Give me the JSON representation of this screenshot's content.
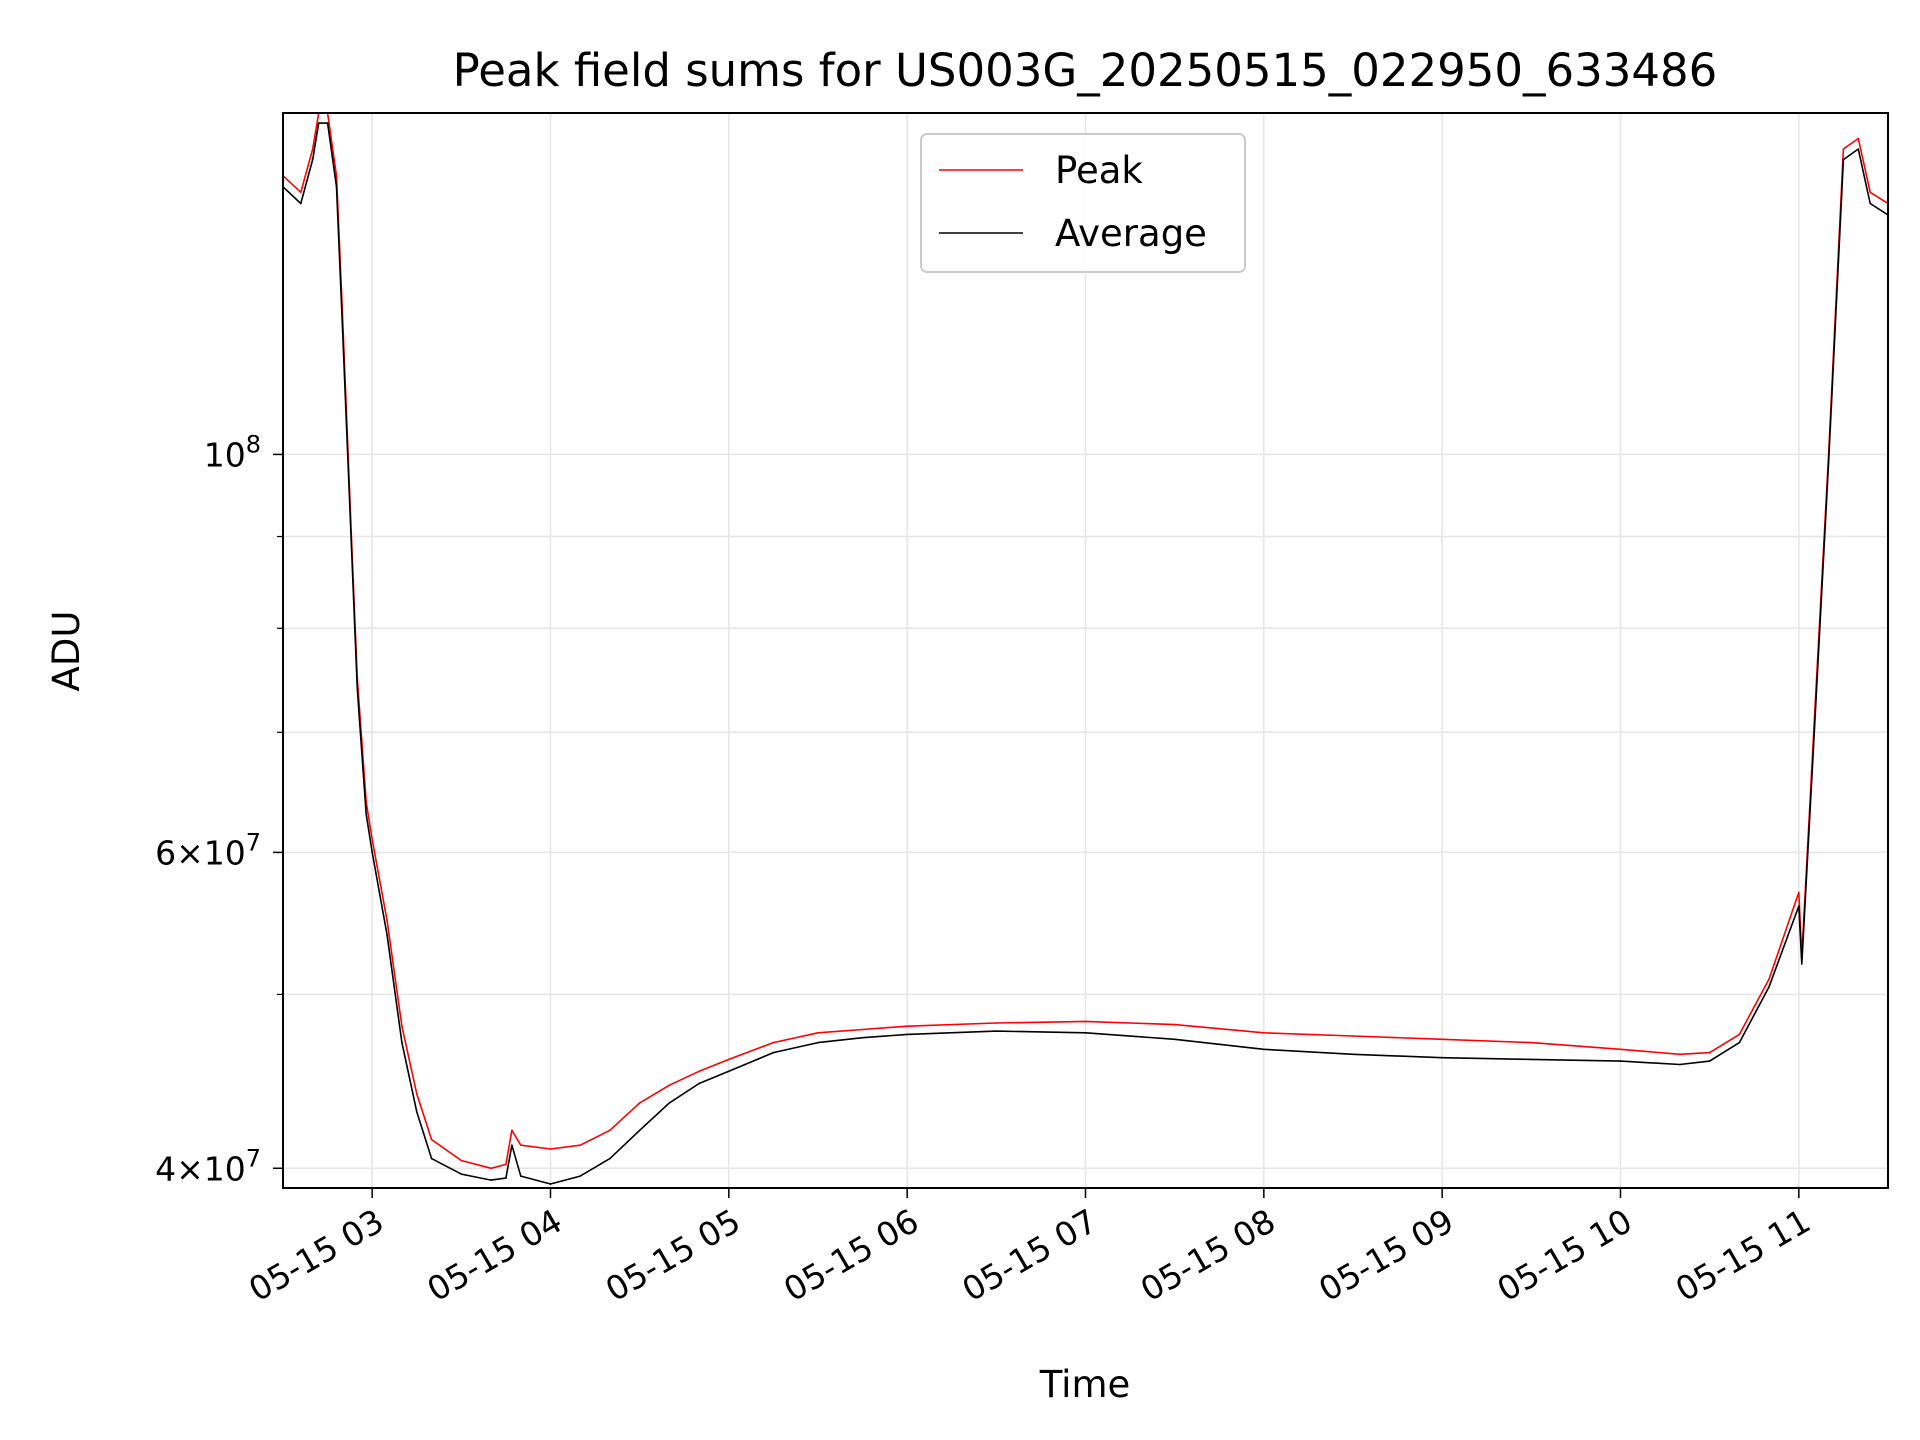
{
  "chart_data": {
    "type": "line",
    "title": "Peak field sums for US003G_20250515_022950_633486",
    "xlabel": "Time",
    "ylabel": "ADU",
    "x_axis": "datetime",
    "xlim": [
      "2025-05-15 02:30",
      "2025-05-15 11:30"
    ],
    "x_ticks": [
      "05-15 03",
      "05-15 04",
      "05-15 05",
      "05-15 06",
      "05-15 07",
      "05-15 08",
      "05-15 09",
      "05-15 10",
      "05-15 11"
    ],
    "y_scale": "log",
    "ylim": [
      39000000,
      155000000
    ],
    "y_major_ticks": [
      {
        "value": 100000000,
        "base": "10",
        "exp": "8",
        "mult": ""
      },
      {
        "value": 60000000,
        "base": "10",
        "exp": "7",
        "mult": "6×"
      },
      {
        "value": 40000000,
        "base": "10",
        "exp": "7",
        "mult": "4×"
      }
    ],
    "y_minor_ticks": [
      50000000,
      70000000,
      80000000,
      90000000
    ],
    "grid": true,
    "legend": {
      "placement": "upper center",
      "entries": [
        "Peak",
        "Average"
      ]
    },
    "colors": {
      "Peak": "#ff0000",
      "Average": "#000000",
      "grid": "#e6e6e6"
    },
    "series": [
      {
        "name": "Peak",
        "color": "#ff0000",
        "x": [
          "2025-05-15 02:30",
          "2025-05-15 02:36",
          "2025-05-15 02:40",
          "2025-05-15 02:42",
          "2025-05-15 02:45",
          "2025-05-15 02:48",
          "2025-05-15 02:50",
          "2025-05-15 02:53",
          "2025-05-15 02:55",
          "2025-05-15 02:58",
          "2025-05-15 03:00",
          "2025-05-15 03:05",
          "2025-05-15 03:10",
          "2025-05-15 03:15",
          "2025-05-15 03:20",
          "2025-05-15 03:30",
          "2025-05-15 03:40",
          "2025-05-15 03:45",
          "2025-05-15 03:47",
          "2025-05-15 03:50",
          "2025-05-15 04:00",
          "2025-05-15 04:10",
          "2025-05-15 04:20",
          "2025-05-15 04:30",
          "2025-05-15 04:40",
          "2025-05-15 04:50",
          "2025-05-15 05:00",
          "2025-05-15 05:15",
          "2025-05-15 05:30",
          "2025-05-15 05:45",
          "2025-05-15 06:00",
          "2025-05-15 06:30",
          "2025-05-15 07:00",
          "2025-05-15 07:30",
          "2025-05-15 08:00",
          "2025-05-15 08:30",
          "2025-05-15 09:00",
          "2025-05-15 09:30",
          "2025-05-15 10:00",
          "2025-05-15 10:20",
          "2025-05-15 10:30",
          "2025-05-15 10:40",
          "2025-05-15 10:50",
          "2025-05-15 11:00",
          "2025-05-15 11:01",
          "2025-05-15 11:05",
          "2025-05-15 11:10",
          "2025-05-15 11:15",
          "2025-05-15 11:20",
          "2025-05-15 11:24",
          "2025-05-15 11:30"
        ],
        "values": [
          143000000,
          140000000,
          148000000,
          155000000,
          155000000,
          143000000,
          120000000,
          90000000,
          75000000,
          64000000,
          61000000,
          55000000,
          48000000,
          44000000,
          41500000,
          40400000,
          40000000,
          40200000,
          42000000,
          41200000,
          41000000,
          41200000,
          42000000,
          43500000,
          44500000,
          45300000,
          46000000,
          47000000,
          47600000,
          47800000,
          48000000,
          48200000,
          48300000,
          48100000,
          47600000,
          47400000,
          47200000,
          47000000,
          46600000,
          46300000,
          46400000,
          47500000,
          51000000,
          57000000,
          52500000,
          70000000,
          100000000,
          148000000,
          150000000,
          140000000,
          138000000
        ]
      },
      {
        "name": "Average",
        "color": "#000000",
        "x": [
          "2025-05-15 02:30",
          "2025-05-15 02:36",
          "2025-05-15 02:40",
          "2025-05-15 02:42",
          "2025-05-15 02:45",
          "2025-05-15 02:48",
          "2025-05-15 02:50",
          "2025-05-15 02:53",
          "2025-05-15 02:55",
          "2025-05-15 02:58",
          "2025-05-15 03:00",
          "2025-05-15 03:05",
          "2025-05-15 03:10",
          "2025-05-15 03:15",
          "2025-05-15 03:20",
          "2025-05-15 03:30",
          "2025-05-15 03:40",
          "2025-05-15 03:45",
          "2025-05-15 03:47",
          "2025-05-15 03:50",
          "2025-05-15 04:00",
          "2025-05-15 04:10",
          "2025-05-15 04:20",
          "2025-05-15 04:30",
          "2025-05-15 04:40",
          "2025-05-15 04:50",
          "2025-05-15 05:00",
          "2025-05-15 05:15",
          "2025-05-15 05:30",
          "2025-05-15 05:45",
          "2025-05-15 06:00",
          "2025-05-15 06:30",
          "2025-05-15 07:00",
          "2025-05-15 07:30",
          "2025-05-15 08:00",
          "2025-05-15 08:30",
          "2025-05-15 09:00",
          "2025-05-15 09:30",
          "2025-05-15 10:00",
          "2025-05-15 10:20",
          "2025-05-15 10:30",
          "2025-05-15 10:40",
          "2025-05-15 10:50",
          "2025-05-15 11:00",
          "2025-05-15 11:01",
          "2025-05-15 11:05",
          "2025-05-15 11:10",
          "2025-05-15 11:15",
          "2025-05-15 11:20",
          "2025-05-15 11:24",
          "2025-05-15 11:30"
        ],
        "values": [
          141000000,
          138000000,
          146000000,
          153000000,
          153000000,
          141000000,
          118000000,
          89000000,
          74000000,
          63000000,
          60000000,
          54000000,
          47000000,
          43000000,
          40500000,
          39700000,
          39400000,
          39500000,
          41200000,
          39600000,
          39200000,
          39600000,
          40500000,
          42000000,
          43500000,
          44600000,
          45300000,
          46400000,
          47000000,
          47300000,
          47500000,
          47700000,
          47600000,
          47200000,
          46600000,
          46300000,
          46100000,
          46000000,
          45900000,
          45700000,
          45900000,
          47000000,
          50500000,
          56000000,
          52000000,
          69000000,
          99000000,
          146000000,
          148000000,
          138000000,
          136000000
        ]
      }
    ]
  }
}
